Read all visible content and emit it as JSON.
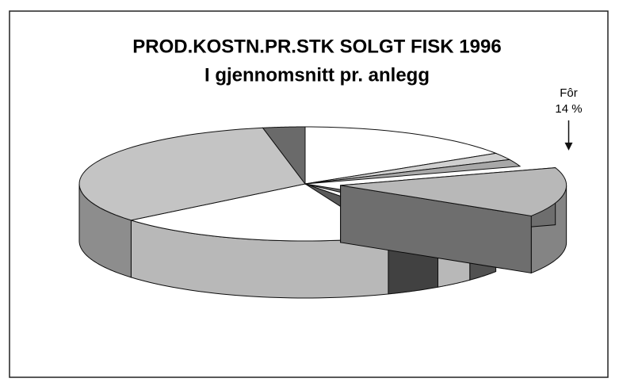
{
  "chart_data": {
    "type": "pie3d",
    "title": "PROD.KOSTN.PR.STK SOLGT FISK 1996",
    "subtitle": "I gjennomsnitt pr. anlegg",
    "categories": [
      null,
      null,
      null,
      "Fôr",
      null,
      null,
      null,
      null,
      null,
      null
    ],
    "values": [
      16,
      2,
      2,
      14,
      3,
      3,
      4,
      20,
      33,
      3
    ],
    "value_labels": [
      null,
      null,
      null,
      "14 %",
      null,
      null,
      null,
      null,
      null,
      null
    ],
    "colors": [
      "#ffffff",
      "#d0d0d0",
      "#a8a8a8",
      "#b8b8b8",
      "#707070",
      "#ffffff",
      "#5a5a5a",
      "#ffffff",
      "#c4c4c4",
      "#6a6a6a"
    ],
    "exploded": [
      3
    ]
  }
}
